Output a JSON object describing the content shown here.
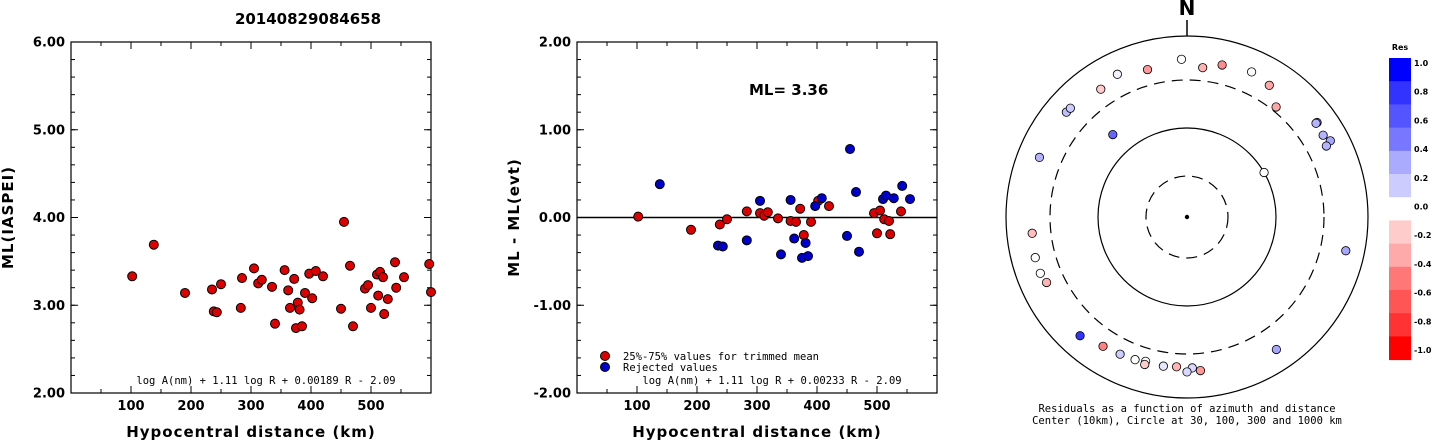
{
  "title": "20140829084658",
  "chart_data": [
    {
      "type": "scatter",
      "ylabel": "ML(IASPEI)",
      "xlabel": "Hypocentral distance (km)",
      "xlim": [
        0,
        600
      ],
      "ylim": [
        2.0,
        6.0
      ],
      "xticks": [
        "100",
        "200",
        "300",
        "400",
        "500"
      ],
      "yticks": [
        "2.00",
        "3.00",
        "4.00",
        "5.00",
        "6.00"
      ],
      "formula": "log A(nm) + 1.11 log R + 0.00189 R - 2.09",
      "points": [
        [
          102,
          3.33
        ],
        [
          138,
          3.69
        ],
        [
          190,
          3.14
        ],
        [
          235,
          3.18
        ],
        [
          238,
          2.93
        ],
        [
          243,
          2.92
        ],
        [
          250,
          3.24
        ],
        [
          283,
          2.97
        ],
        [
          285,
          3.31
        ],
        [
          305,
          3.42
        ],
        [
          312,
          3.25
        ],
        [
          318,
          3.29
        ],
        [
          335,
          3.21
        ],
        [
          340,
          2.79
        ],
        [
          356,
          3.4
        ],
        [
          362,
          3.17
        ],
        [
          365,
          2.97
        ],
        [
          372,
          3.3
        ],
        [
          375,
          2.74
        ],
        [
          378,
          3.03
        ],
        [
          381,
          2.95
        ],
        [
          385,
          2.76
        ],
        [
          390,
          3.14
        ],
        [
          397,
          3.36
        ],
        [
          402,
          3.08
        ],
        [
          408,
          3.39
        ],
        [
          420,
          3.33
        ],
        [
          450,
          2.96
        ],
        [
          455,
          3.95
        ],
        [
          465,
          3.45
        ],
        [
          470,
          2.76
        ],
        [
          490,
          3.19
        ],
        [
          495,
          3.23
        ],
        [
          500,
          2.97
        ],
        [
          510,
          3.35
        ],
        [
          512,
          3.11
        ],
        [
          515,
          3.38
        ],
        [
          520,
          3.32
        ],
        [
          522,
          2.9
        ],
        [
          528,
          3.07
        ],
        [
          540,
          3.49
        ],
        [
          542,
          3.2
        ],
        [
          555,
          3.32
        ],
        [
          597,
          3.47
        ],
        [
          600,
          3.15
        ]
      ]
    },
    {
      "type": "scatter",
      "ylabel": "ML - ML(evt)",
      "xlabel": "Hypocentral distance (km)",
      "xlim": [
        0,
        600
      ],
      "ylim": [
        -2.0,
        2.0
      ],
      "xticks": [
        "100",
        "200",
        "300",
        "400",
        "500"
      ],
      "yticks": [
        "-2.00",
        "-1.00",
        "0.00",
        "1.00",
        "2.00"
      ],
      "ml_label": "ML= 3.36",
      "formula": "log A(nm) + 1.11 log R + 0.00233 R - 2.09",
      "legend": [
        "25%-75% values for trimmed mean",
        "Rejected values"
      ],
      "zero_line": 0,
      "series": [
        {
          "name": "25%-75% values for trimmed mean",
          "color": "#dd0000",
          "points": [
            [
              102,
              0.01
            ],
            [
              190,
              -0.14
            ],
            [
              238,
              -0.08
            ],
            [
              250,
              -0.02
            ],
            [
              283,
              0.07
            ],
            [
              305,
              0.05
            ],
            [
              312,
              0.02
            ],
            [
              318,
              0.06
            ],
            [
              335,
              -0.01
            ],
            [
              356,
              -0.04
            ],
            [
              365,
              -0.05
            ],
            [
              372,
              0.1
            ],
            [
              378,
              -0.2
            ],
            [
              390,
              -0.05
            ],
            [
              402,
              0.19
            ],
            [
              420,
              0.13
            ],
            [
              495,
              0.05
            ],
            [
              500,
              -0.18
            ],
            [
              505,
              0.08
            ],
            [
              512,
              -0.02
            ],
            [
              520,
              -0.04
            ],
            [
              522,
              -0.19
            ],
            [
              540,
              0.07
            ]
          ]
        },
        {
          "name": "Rejected values",
          "color": "#0000cc",
          "points": [
            [
              138,
              0.38
            ],
            [
              235,
              -0.32
            ],
            [
              243,
              -0.33
            ],
            [
              283,
              -0.26
            ],
            [
              305,
              0.19
            ],
            [
              340,
              -0.42
            ],
            [
              356,
              0.2
            ],
            [
              362,
              -0.24
            ],
            [
              375,
              -0.46
            ],
            [
              381,
              -0.29
            ],
            [
              385,
              -0.44
            ],
            [
              397,
              0.13
            ],
            [
              408,
              0.22
            ],
            [
              450,
              -0.21
            ],
            [
              455,
              0.78
            ],
            [
              465,
              0.29
            ],
            [
              470,
              -0.39
            ],
            [
              510,
              0.21
            ],
            [
              515,
              0.25
            ],
            [
              528,
              0.22
            ],
            [
              542,
              0.36
            ],
            [
              555,
              0.21
            ]
          ]
        }
      ]
    },
    {
      "type": "polar-scatter",
      "north_label": "N",
      "caption_line1": "Residuals as a function of azimuth and distance",
      "caption_line2": "Center (10km), Circle at 30, 100, 300 and 1000 km",
      "rings_km": [
        30,
        100,
        300,
        1000
      ],
      "colorbar_title": "Res",
      "colorbar_labels": [
        "1.0",
        "0.8",
        "0.6",
        "0.4",
        "0.2",
        "0.0",
        "-0.2",
        "-0.4",
        "-0.6",
        "-0.8",
        "-1.0"
      ],
      "colorbar_colors": [
        "#0000ff",
        "#3333ff",
        "#5555ff",
        "#7777ff",
        "#aaaaff",
        "#ccccff",
        "#ffffff",
        "#ffcccc",
        "#ffaaaa",
        "#ff7777",
        "#ff5555",
        "#ff3333",
        "#ff0000"
      ],
      "points": [
        {
          "az": 358,
          "dist": 530,
          "res": 0.0
        },
        {
          "az": 6,
          "dist": 430,
          "res": -0.3
        },
        {
          "az": 13,
          "dist": 505,
          "res": -0.45
        },
        {
          "az": 24,
          "dist": 545,
          "res": 0.02
        },
        {
          "az": 32,
          "dist": 495,
          "res": -0.35
        },
        {
          "az": 39,
          "dist": 340,
          "res": -0.35
        },
        {
          "az": 54,
          "dist": 575,
          "res": 0.45
        },
        {
          "az": 54,
          "dist": 555,
          "res": 0.3
        },
        {
          "az": 59,
          "dist": 545,
          "res": 0.3
        },
        {
          "az": 62,
          "dist": 600,
          "res": 0.35
        },
        {
          "az": 63,
          "dist": 510,
          "res": 0.3
        },
        {
          "az": 60,
          "dist": 100,
          "res": 0.0
        },
        {
          "az": 102,
          "dist": 600,
          "res": 0.35
        },
        {
          "az": 146,
          "dist": 560,
          "res": 0.35
        },
        {
          "az": 175,
          "dist": 480,
          "res": -0.4
        },
        {
          "az": 178,
          "dist": 440,
          "res": 0.15
        },
        {
          "az": 180,
          "dist": 490,
          "res": 0.15
        },
        {
          "az": 184,
          "dist": 430,
          "res": -0.3
        },
        {
          "az": 189,
          "dist": 440,
          "res": 0.1
        },
        {
          "az": 196,
          "dist": 430,
          "res": 0.0
        },
        {
          "az": 196,
          "dist": 470,
          "res": -0.2
        },
        {
          "az": 200,
          "dist": 450,
          "res": 0.0
        },
        {
          "az": 206,
          "dist": 460,
          "res": 0.2
        },
        {
          "az": 213,
          "dist": 480,
          "res": -0.5
        },
        {
          "az": 222,
          "dist": 560,
          "res": 0.8
        },
        {
          "az": 245,
          "dist": 490,
          "res": -0.3
        },
        {
          "az": 249,
          "dist": 520,
          "res": 0.0
        },
        {
          "az": 255,
          "dist": 520,
          "res": 0.0
        },
        {
          "az": 264,
          "dist": 500,
          "res": -0.25
        },
        {
          "az": 292,
          "dist": 550,
          "res": 0.3
        },
        {
          "az": 318,
          "dist": 165,
          "res": 0.6
        },
        {
          "az": 311,
          "dist": 560,
          "res": 0.25
        },
        {
          "az": 313,
          "dist": 555,
          "res": 0.2
        },
        {
          "az": 326,
          "dist": 480,
          "res": -0.2
        },
        {
          "az": 334,
          "dist": 545,
          "res": 0.05
        },
        {
          "az": 345,
          "dist": 460,
          "res": -0.4
        }
      ]
    }
  ]
}
